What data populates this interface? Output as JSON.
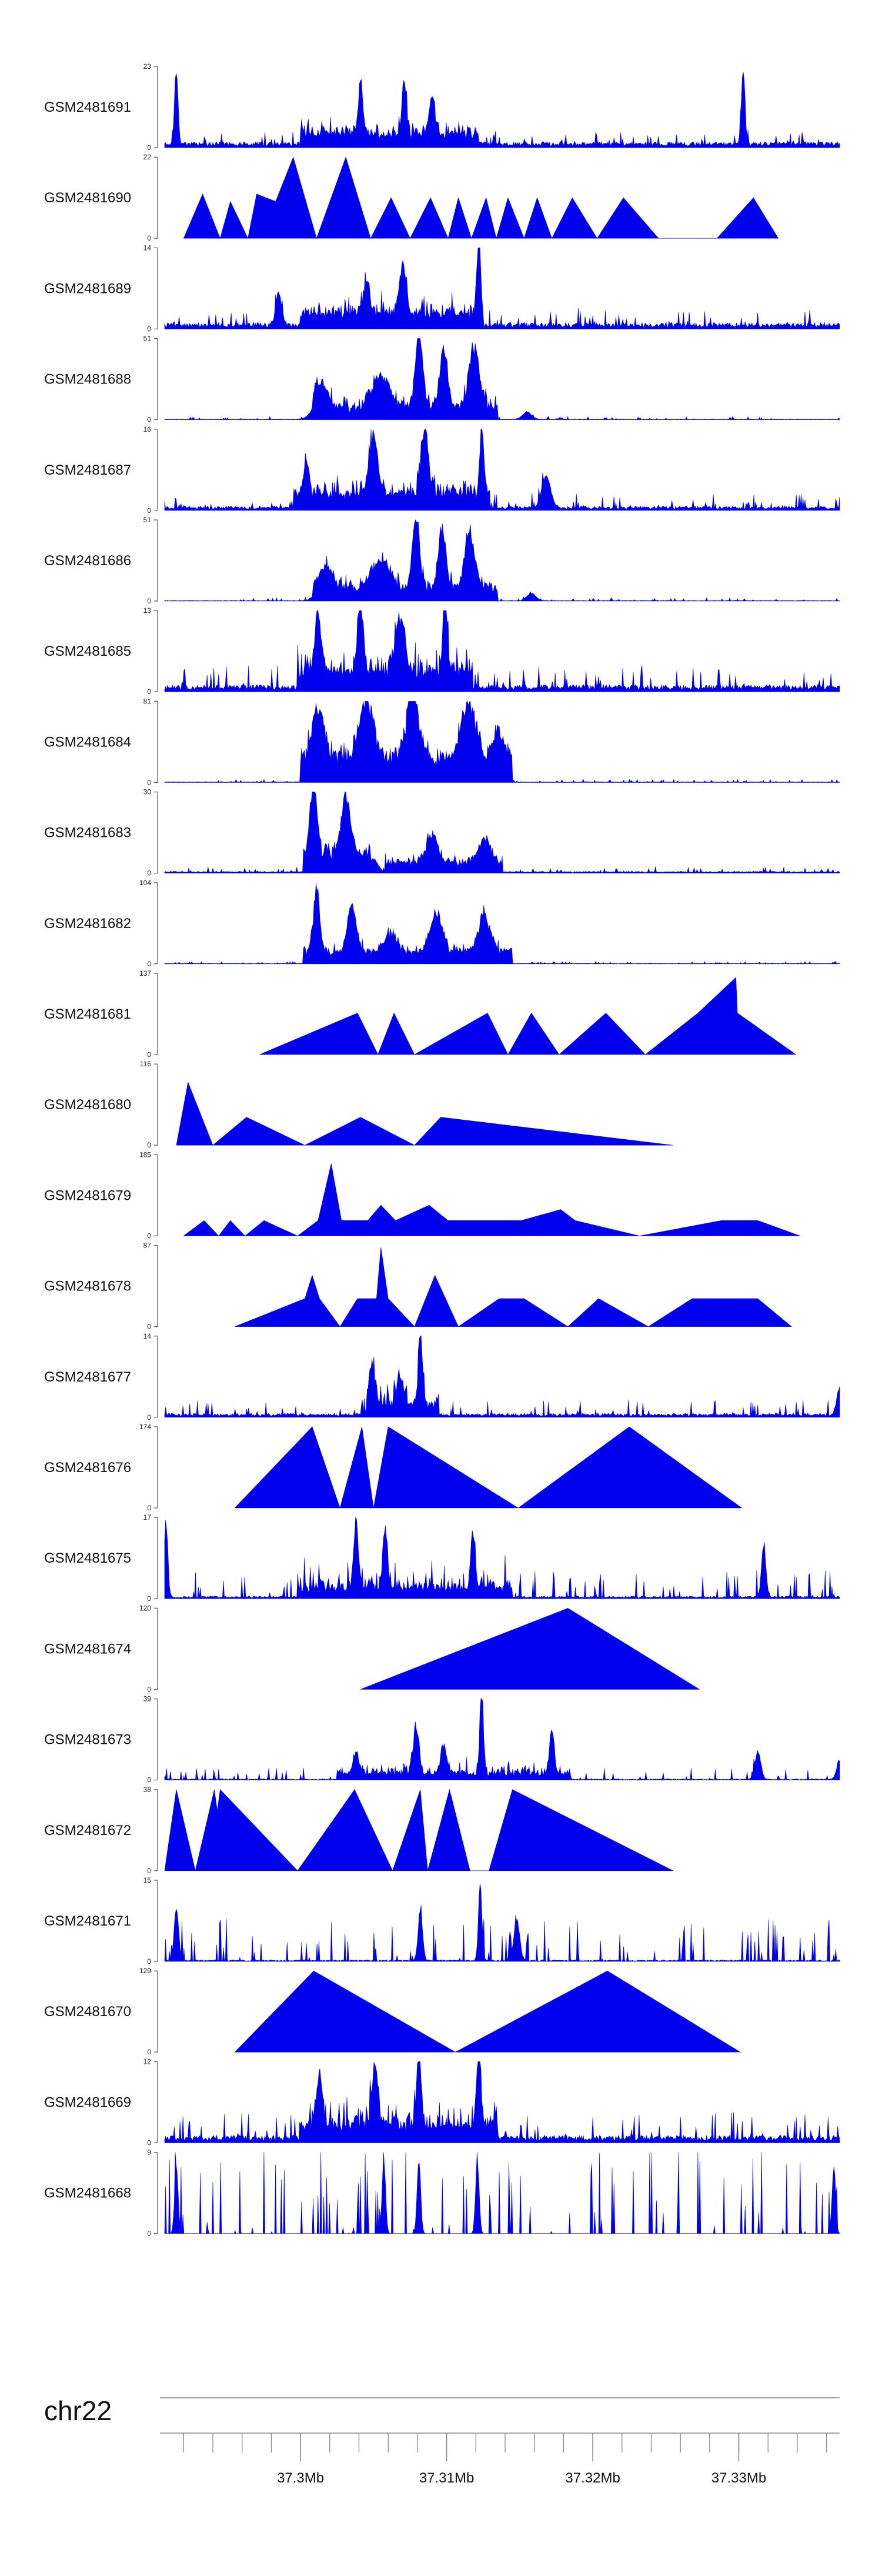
{
  "chart_data": {
    "type": "area",
    "title": "",
    "genome": {
      "chromosome": "chr22",
      "xlim_mb": [
        37.2907,
        37.3369
      ],
      "major_ticks_mb": [
        37.3,
        37.31,
        37.32,
        37.33
      ],
      "major_tick_labels": [
        "37.3Mb",
        "37.31Mb",
        "37.32Mb",
        "37.33Mb"
      ],
      "minor_tick_step_mb": 0.002
    },
    "tracks": [
      {
        "name": "GSM2481691",
        "ymax": 23,
        "style": "noisy",
        "baseline": 1.2,
        "noise": 1.5,
        "peaks": [
          [
            37.2915,
            22,
            0.00012
          ],
          [
            37.3041,
            16,
            0.00015
          ],
          [
            37.3071,
            16,
            0.00015
          ],
          [
            37.309,
            12,
            0.0002
          ],
          [
            37.3303,
            23,
            0.00012
          ]
        ],
        "segments": [
          [
            37.3,
            37.3122,
            3,
            4
          ]
        ]
      },
      {
        "name": "GSM2481690",
        "ymax": 22,
        "style": "tri",
        "points": [
          [
            37.292,
            0
          ],
          [
            37.2933,
            12
          ],
          [
            37.2945,
            0
          ],
          [
            37.2952,
            10
          ],
          [
            37.2964,
            0
          ],
          [
            37.297,
            12
          ],
          [
            37.2983,
            10
          ],
          [
            37.2995,
            22
          ],
          [
            37.3011,
            0
          ],
          [
            37.3031,
            22
          ],
          [
            37.3048,
            0
          ],
          [
            37.3062,
            11
          ],
          [
            37.3075,
            0
          ],
          [
            37.3089,
            11
          ],
          [
            37.3101,
            0
          ],
          [
            37.3108,
            11
          ],
          [
            37.3117,
            0
          ],
          [
            37.3127,
            11
          ],
          [
            37.3134,
            0
          ],
          [
            37.3142,
            11
          ],
          [
            37.3153,
            0
          ],
          [
            37.3162,
            11
          ],
          [
            37.3172,
            0
          ],
          [
            37.3186,
            11
          ],
          [
            37.3203,
            0
          ],
          [
            37.3221,
            11
          ],
          [
            37.3245,
            0
          ],
          [
            37.3285,
            0
          ],
          [
            37.331,
            11
          ],
          [
            37.3327,
            0
          ]
        ]
      },
      {
        "name": "GSM2481689",
        "ymax": 14,
        "style": "noisy",
        "baseline": 0.8,
        "noise": 1.2,
        "peaks": [
          [
            37.3122,
            14,
            0.00012
          ],
          [
            37.3045,
            6,
            0.0002
          ],
          [
            37.307,
            8,
            0.00025
          ],
          [
            37.2985,
            6,
            0.0002
          ]
        ],
        "segments": [
          [
            37.3,
            37.3125,
            2,
            3
          ]
        ]
      },
      {
        "name": "GSM2481688",
        "ymax": 51,
        "style": "noisy",
        "baseline": 0.3,
        "noise": 0.8,
        "peaks": [
          [
            37.3081,
            50,
            0.00025
          ],
          [
            37.3098,
            40,
            0.00025
          ],
          [
            37.3119,
            38,
            0.00035
          ],
          [
            37.3055,
            22,
            0.0006
          ],
          [
            37.3014,
            15,
            0.0005
          ],
          [
            37.3155,
            5,
            0.0003
          ]
        ],
        "segments": [
          [
            37.3008,
            37.3135,
            8,
            10
          ]
        ]
      },
      {
        "name": "GSM2481687",
        "ymax": 16,
        "style": "noisy",
        "baseline": 0.6,
        "noise": 1.2,
        "peaks": [
          [
            37.3124,
            16,
            0.00012
          ],
          [
            37.3085,
            14,
            0.00025
          ],
          [
            37.305,
            12,
            0.0003
          ],
          [
            37.3004,
            7,
            0.0002
          ],
          [
            37.3168,
            7,
            0.0003
          ]
        ],
        "segments": [
          [
            37.2995,
            37.313,
            3,
            4
          ]
        ]
      },
      {
        "name": "GSM2481686",
        "ymax": 51,
        "style": "noisy",
        "baseline": 0.3,
        "noise": 0.8,
        "peaks": [
          [
            37.3079,
            48,
            0.00025
          ],
          [
            37.3097,
            40,
            0.00025
          ],
          [
            37.3116,
            38,
            0.00035
          ],
          [
            37.3055,
            20,
            0.0006
          ],
          [
            37.3017,
            14,
            0.0005
          ],
          [
            37.3158,
            5,
            0.0003
          ]
        ],
        "segments": [
          [
            37.3008,
            37.3135,
            8,
            10
          ]
        ]
      },
      {
        "name": "GSM2481685",
        "ymax": 13,
        "style": "noisy",
        "baseline": 0.8,
        "noise": 1.5,
        "peaks": [
          [
            37.3041,
            13,
            0.00015
          ],
          [
            37.3099,
            13,
            0.00015
          ],
          [
            37.3012,
            10,
            0.0002
          ],
          [
            37.3068,
            9,
            0.0003
          ]
        ],
        "segments": [
          [
            37.2998,
            37.3118,
            3,
            4
          ]
        ]
      },
      {
        "name": "GSM2481684",
        "ymax": 81,
        "style": "noisy",
        "baseline": 0.5,
        "noise": 1.2,
        "peaks": [
          [
            37.3077,
            75,
            0.0004
          ],
          [
            37.3045,
            60,
            0.0005
          ],
          [
            37.3115,
            58,
            0.0005
          ],
          [
            37.3012,
            55,
            0.0004
          ],
          [
            37.3135,
            35,
            0.0003
          ]
        ],
        "segments": [
          [
            37.3,
            37.3145,
            28,
            16
          ]
        ]
      },
      {
        "name": "GSM2481683",
        "ymax": 30,
        "style": "noisy",
        "baseline": 0.5,
        "noise": 0.8,
        "peaks": [
          [
            37.3009,
            30,
            0.0002
          ],
          [
            37.3031,
            23,
            0.0003
          ],
          [
            37.309,
            11,
            0.0004
          ],
          [
            37.3126,
            10,
            0.0004
          ],
          [
            37.305,
            5,
            0.0003
          ]
        ],
        "segments": [
          [
            37.3002,
            37.3048,
            8,
            6
          ],
          [
            37.3058,
            37.3138,
            4,
            3
          ]
        ]
      },
      {
        "name": "GSM2481682",
        "ymax": 104,
        "style": "noisy",
        "baseline": 0.5,
        "noise": 1.2,
        "peaks": [
          [
            37.3011,
            90,
            0.0002
          ],
          [
            37.3035,
            65,
            0.0003
          ],
          [
            37.3093,
            55,
            0.0004
          ],
          [
            37.3126,
            50,
            0.0004
          ],
          [
            37.3062,
            25,
            0.0004
          ]
        ],
        "segments": [
          [
            37.3002,
            37.3145,
            18,
            12
          ]
        ]
      },
      {
        "name": "GSM2481681",
        "ymax": 137,
        "style": "tri",
        "points": [
          [
            37.2972,
            0
          ],
          [
            37.3039,
            70
          ],
          [
            37.3053,
            0
          ],
          [
            37.3064,
            70
          ],
          [
            37.3078,
            0
          ],
          [
            37.3128,
            70
          ],
          [
            37.3142,
            0
          ],
          [
            37.3158,
            70
          ],
          [
            37.3177,
            0
          ],
          [
            37.3209,
            70
          ],
          [
            37.3236,
            0
          ],
          [
            37.3272,
            70
          ],
          [
            37.3298,
            130
          ],
          [
            37.3299,
            70
          ],
          [
            37.3339,
            0
          ]
        ]
      },
      {
        "name": "GSM2481680",
        "ymax": 116,
        "style": "tri",
        "points": [
          [
            37.2915,
            0
          ],
          [
            37.2923,
            90
          ],
          [
            37.294,
            0
          ],
          [
            37.2963,
            40
          ],
          [
            37.3003,
            0
          ],
          [
            37.3041,
            40
          ],
          [
            37.3078,
            0
          ],
          [
            37.3096,
            40
          ],
          [
            37.3255,
            0
          ]
        ]
      },
      {
        "name": "GSM2481679",
        "ymax": 185,
        "style": "tri",
        "points": [
          [
            37.292,
            0
          ],
          [
            37.2934,
            35
          ],
          [
            37.2944,
            0
          ],
          [
            37.2952,
            35
          ],
          [
            37.2962,
            0
          ],
          [
            37.2975,
            35
          ],
          [
            37.2998,
            0
          ],
          [
            37.3012,
            35
          ],
          [
            37.3021,
            165
          ],
          [
            37.3028,
            35
          ],
          [
            37.3046,
            35
          ],
          [
            37.3055,
            70
          ],
          [
            37.3065,
            35
          ],
          [
            37.3088,
            70
          ],
          [
            37.3101,
            35
          ],
          [
            37.3112,
            35
          ],
          [
            37.3134,
            35
          ],
          [
            37.3151,
            35
          ],
          [
            37.3178,
            60
          ],
          [
            37.3188,
            35
          ],
          [
            37.3232,
            0
          ],
          [
            37.3288,
            35
          ],
          [
            37.3313,
            35
          ],
          [
            37.3342,
            0
          ]
        ]
      },
      {
        "name": "GSM2481678",
        "ymax": 87,
        "style": "tri",
        "points": [
          [
            37.2955,
            0
          ],
          [
            37.3003,
            30
          ],
          [
            37.3008,
            55
          ],
          [
            37.3013,
            30
          ],
          [
            37.3027,
            0
          ],
          [
            37.3039,
            30
          ],
          [
            37.3052,
            30
          ],
          [
            37.3055,
            85
          ],
          [
            37.306,
            30
          ],
          [
            37.3078,
            0
          ],
          [
            37.3092,
            55
          ],
          [
            37.3108,
            0
          ],
          [
            37.3136,
            30
          ],
          [
            37.3153,
            30
          ],
          [
            37.3183,
            0
          ],
          [
            37.3204,
            30
          ],
          [
            37.3238,
            0
          ],
          [
            37.3268,
            30
          ],
          [
            37.3313,
            30
          ],
          [
            37.3336,
            0
          ]
        ]
      },
      {
        "name": "GSM2481677",
        "ymax": 14,
        "style": "noisy",
        "baseline": 0.5,
        "noise": 1.2,
        "peaks": [
          [
            37.3082,
            14,
            0.00012
          ],
          [
            37.3049,
            8,
            0.0002
          ],
          [
            37.3068,
            6,
            0.0002
          ],
          [
            37.3369,
            5,
            0.0002
          ]
        ],
        "segments": [
          [
            37.3045,
            37.3095,
            2,
            3
          ]
        ]
      },
      {
        "name": "GSM2481676",
        "ymax": 174,
        "style": "tri",
        "points": [
          [
            37.2955,
            0
          ],
          [
            37.3008,
            174
          ],
          [
            37.3027,
            0
          ],
          [
            37.3042,
            174
          ],
          [
            37.305,
            0
          ],
          [
            37.306,
            174
          ],
          [
            37.3149,
            0
          ],
          [
            37.3225,
            174
          ],
          [
            37.3302,
            0
          ]
        ]
      },
      {
        "name": "GSM2481675",
        "ymax": 17,
        "style": "noisy",
        "baseline": 0.4,
        "noise": 2.5,
        "peaks": [
          [
            37.2908,
            17,
            0.00012
          ],
          [
            37.3038,
            15,
            0.00015
          ],
          [
            37.3058,
            14,
            0.00015
          ],
          [
            37.3118,
            13,
            0.00015
          ],
          [
            37.3317,
            12,
            0.00015
          ]
        ],
        "segments": [
          [
            37.2998,
            37.3145,
            2,
            4
          ]
        ]
      },
      {
        "name": "GSM2481674",
        "ymax": 120,
        "style": "tri",
        "points": [
          [
            37.3041,
            0
          ],
          [
            37.3183,
            120
          ],
          [
            37.3273,
            0
          ]
        ]
      },
      {
        "name": "GSM2481673",
        "ymax": 39,
        "style": "noisy",
        "baseline": 0.4,
        "noise": 2.5,
        "peaks": [
          [
            37.3124,
            39,
            0.00012
          ],
          [
            37.3079,
            23,
            0.0002
          ],
          [
            37.3172,
            23,
            0.00015
          ],
          [
            37.3098,
            15,
            0.0002
          ],
          [
            37.3038,
            10,
            0.0002
          ],
          [
            37.3313,
            14,
            0.0002
          ],
          [
            37.3369,
            10,
            0.0002
          ]
        ],
        "segments": [
          [
            37.3025,
            37.3185,
            3,
            5
          ]
        ]
      },
      {
        "name": "GSM2481672",
        "ymax": 38,
        "style": "tri",
        "points": [
          [
            37.2907,
            0
          ],
          [
            37.2915,
            38
          ],
          [
            37.2928,
            0
          ],
          [
            37.2941,
            38
          ],
          [
            37.2943,
            28
          ],
          [
            37.2945,
            38
          ],
          [
            37.2998,
            0
          ],
          [
            37.3037,
            38
          ],
          [
            37.3063,
            0
          ],
          [
            37.3082,
            38
          ],
          [
            37.3087,
            0
          ],
          [
            37.3102,
            38
          ],
          [
            37.3116,
            0
          ],
          [
            37.3129,
            0
          ],
          [
            37.3145,
            38
          ],
          [
            37.3255,
            0
          ]
        ]
      },
      {
        "name": "GSM2481671",
        "ymax": 15,
        "style": "noisy",
        "baseline": 0.2,
        "noise": 3.5,
        "peaks": [
          [
            37.3123,
            15,
            0.00012
          ],
          [
            37.2915,
            11,
            0.00015
          ],
          [
            37.3082,
            10,
            0.00015
          ],
          [
            37.3148,
            8,
            0.0002
          ]
        ],
        "segments": []
      },
      {
        "name": "GSM2481670",
        "ymax": 129,
        "style": "tri",
        "points": [
          [
            37.2955,
            0
          ],
          [
            37.3009,
            129
          ],
          [
            37.3106,
            0
          ],
          [
            37.321,
            129
          ],
          [
            37.3301,
            0
          ]
        ]
      },
      {
        "name": "GSM2481669",
        "ymax": 12,
        "style": "noisy",
        "baseline": 0.8,
        "noise": 1.8,
        "peaks": [
          [
            37.3081,
            12,
            0.00015
          ],
          [
            37.3122,
            12,
            0.00015
          ],
          [
            37.3051,
            10,
            0.0002
          ],
          [
            37.3013,
            8,
            0.0002
          ]
        ],
        "segments": [
          [
            37.3,
            37.3135,
            2,
            3
          ]
        ]
      },
      {
        "name": "GSM2481668",
        "ymax": 9,
        "style": "noisy",
        "baseline": 0.0,
        "noise": 4.5,
        "peaks": [
          [
            37.3057,
            9,
            0.00012
          ],
          [
            37.3081,
            9,
            0.00012
          ],
          [
            37.3121,
            9,
            0.00012
          ],
          [
            37.2915,
            8,
            0.00012
          ],
          [
            37.3365,
            8,
            0.00012
          ]
        ],
        "segments": []
      }
    ]
  },
  "colors": {
    "track_fill": "#0000ee",
    "axis_line": "#555555",
    "genome_axis": "#888888",
    "text": "#111111"
  }
}
